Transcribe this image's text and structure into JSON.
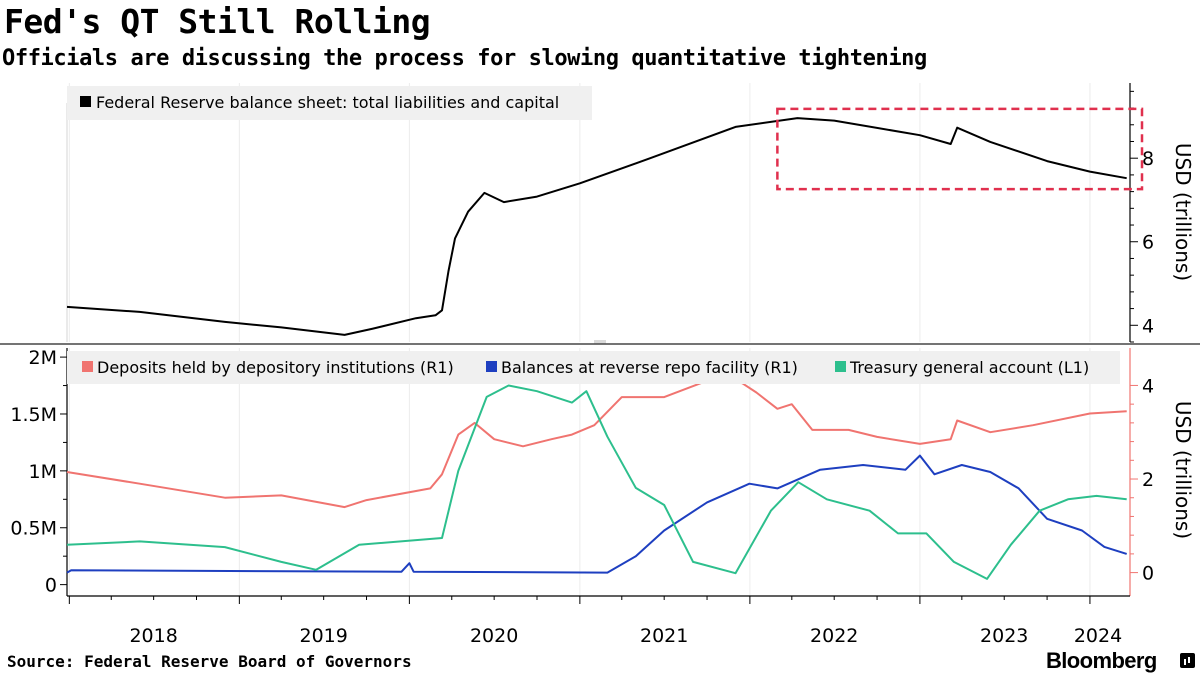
{
  "title": "Fed's QT Still Rolling",
  "subtitle": "Officials are discussing the process for slowing quantitative tightening",
  "source": "Source: Federal Reserve Board of Governors",
  "brand": "Bloomberg",
  "brand_icon": "bloomberg-terminal-icon",
  "chart_data": [
    {
      "type": "line",
      "x_type": "date",
      "xlim": [
        "2017-12-27",
        "2024-03-27"
      ],
      "ylabel": "USD (trillions)",
      "y_axis": "right",
      "ylim": [
        3.6,
        9.8
      ],
      "yticks": [
        4,
        6,
        8
      ],
      "legend_position": "top-left",
      "series": [
        {
          "name": "Federal Reserve balance sheet: total liabilities and capital",
          "color": "#000000",
          "points": [
            [
              "2017-12-27",
              4.44
            ],
            [
              "2018-06-01",
              4.32
            ],
            [
              "2018-12-01",
              4.08
            ],
            [
              "2019-04-01",
              3.95
            ],
            [
              "2019-08-15",
              3.77
            ],
            [
              "2019-10-15",
              3.92
            ],
            [
              "2020-01-15",
              4.17
            ],
            [
              "2020-02-26",
              4.24
            ],
            [
              "2020-03-11",
              4.36
            ],
            [
              "2020-03-25",
              5.3
            ],
            [
              "2020-04-08",
              6.08
            ],
            [
              "2020-05-06",
              6.72
            ],
            [
              "2020-06-10",
              7.17
            ],
            [
              "2020-07-22",
              6.95
            ],
            [
              "2020-10-01",
              7.08
            ],
            [
              "2021-01-01",
              7.4
            ],
            [
              "2021-06-01",
              8.0
            ],
            [
              "2021-12-01",
              8.75
            ],
            [
              "2022-04-13",
              8.96
            ],
            [
              "2022-07-01",
              8.9
            ],
            [
              "2023-01-01",
              8.55
            ],
            [
              "2023-03-08",
              8.34
            ],
            [
              "2023-03-22",
              8.73
            ],
            [
              "2023-06-01",
              8.39
            ],
            [
              "2023-10-01",
              7.93
            ],
            [
              "2024-01-01",
              7.68
            ],
            [
              "2024-03-20",
              7.52
            ]
          ]
        }
      ],
      "annotation": {
        "type": "dashed-box",
        "color": "#e0304e",
        "x": [
          "2022-03-01",
          "2024-03-27"
        ],
        "y": [
          7.26,
          9.18
        ]
      }
    },
    {
      "type": "line",
      "x_type": "date",
      "xlim": [
        "2017-12-27",
        "2024-03-27"
      ],
      "xticks": [
        "2018",
        "2019",
        "2020",
        "2021",
        "2022",
        "2023",
        "2024"
      ],
      "xlim_left": "2017-12-27",
      "left_axis": {
        "ylim": [
          -0.1,
          2.08
        ],
        "ticks": [
          0,
          0.5,
          1,
          1.5,
          2
        ],
        "tick_labels": [
          "0",
          "0.5M",
          "1M",
          "1.5M",
          "2M"
        ]
      },
      "right_axis": {
        "label": "USD (trillions)",
        "ylim": [
          -0.5,
          4.8
        ],
        "ticks": [
          0,
          2,
          4
        ],
        "tick_labels": [
          "0",
          "2",
          "4"
        ]
      },
      "legend_position": "top",
      "series": [
        {
          "name": "Deposits held by depository institutions (R1)",
          "axis": "right",
          "color": "#f07470",
          "points": [
            [
              "2017-12-27",
              2.15
            ],
            [
              "2018-06-01",
              1.9
            ],
            [
              "2018-12-01",
              1.6
            ],
            [
              "2019-04-01",
              1.65
            ],
            [
              "2019-08-15",
              1.4
            ],
            [
              "2019-10-01",
              1.55
            ],
            [
              "2020-02-15",
              1.8
            ],
            [
              "2020-03-11",
              2.1
            ],
            [
              "2020-04-15",
              2.95
            ],
            [
              "2020-05-20",
              3.2
            ],
            [
              "2020-07-01",
              2.85
            ],
            [
              "2020-09-01",
              2.7
            ],
            [
              "2020-11-01",
              2.85
            ],
            [
              "2020-12-15",
              2.95
            ],
            [
              "2021-02-01",
              3.15
            ],
            [
              "2021-04-01",
              3.75
            ],
            [
              "2021-07-01",
              3.75
            ],
            [
              "2021-10-01",
              4.1
            ],
            [
              "2021-12-15",
              4.05
            ],
            [
              "2022-01-15",
              3.85
            ],
            [
              "2022-03-01",
              3.5
            ],
            [
              "2022-04-01",
              3.6
            ],
            [
              "2022-05-15",
              3.05
            ],
            [
              "2022-08-01",
              3.05
            ],
            [
              "2022-10-01",
              2.9
            ],
            [
              "2023-01-01",
              2.75
            ],
            [
              "2023-03-08",
              2.85
            ],
            [
              "2023-03-22",
              3.25
            ],
            [
              "2023-06-01",
              3.0
            ],
            [
              "2023-09-01",
              3.15
            ],
            [
              "2024-01-01",
              3.4
            ],
            [
              "2024-03-20",
              3.45
            ]
          ]
        },
        {
          "name": "Balances at reverse repo facility (R1)",
          "axis": "right",
          "color": "#1e3fc0",
          "points": [
            [
              "2017-12-27",
              0.0
            ],
            [
              "2018-01-05",
              0.05
            ],
            [
              "2019-12-15",
              0.02
            ],
            [
              "2020-01-01",
              0.2
            ],
            [
              "2020-01-10",
              0.02
            ],
            [
              "2021-03-01",
              0.0
            ],
            [
              "2021-05-01",
              0.35
            ],
            [
              "2021-07-01",
              0.9
            ],
            [
              "2021-10-01",
              1.5
            ],
            [
              "2021-12-31",
              1.9
            ],
            [
              "2022-03-01",
              1.8
            ],
            [
              "2022-06-01",
              2.2
            ],
            [
              "2022-09-01",
              2.3
            ],
            [
              "2022-12-01",
              2.2
            ],
            [
              "2023-01-01",
              2.5
            ],
            [
              "2023-02-01",
              2.1
            ],
            [
              "2023-04-01",
              2.3
            ],
            [
              "2023-06-01",
              2.15
            ],
            [
              "2023-08-01",
              1.8
            ],
            [
              "2023-10-01",
              1.15
            ],
            [
              "2023-12-15",
              0.9
            ],
            [
              "2024-02-01",
              0.55
            ],
            [
              "2024-03-20",
              0.4
            ]
          ]
        },
        {
          "name": "Treasury general account (L1)",
          "axis": "left",
          "color": "#2dbf8d",
          "points": [
            [
              "2017-12-27",
              0.35
            ],
            [
              "2018-06-01",
              0.38
            ],
            [
              "2018-12-01",
              0.33
            ],
            [
              "2019-04-01",
              0.2
            ],
            [
              "2019-06-15",
              0.13
            ],
            [
              "2019-09-15",
              0.35
            ],
            [
              "2020-03-11",
              0.41
            ],
            [
              "2020-04-15",
              1.0
            ],
            [
              "2020-06-15",
              1.65
            ],
            [
              "2020-08-01",
              1.75
            ],
            [
              "2020-10-01",
              1.7
            ],
            [
              "2020-12-15",
              1.6
            ],
            [
              "2021-01-15",
              1.7
            ],
            [
              "2021-03-01",
              1.3
            ],
            [
              "2021-05-01",
              0.85
            ],
            [
              "2021-07-01",
              0.7
            ],
            [
              "2021-09-01",
              0.2
            ],
            [
              "2021-12-01",
              0.1
            ],
            [
              "2022-02-15",
              0.65
            ],
            [
              "2022-04-15",
              0.9
            ],
            [
              "2022-06-15",
              0.75
            ],
            [
              "2022-09-15",
              0.65
            ],
            [
              "2022-11-15",
              0.45
            ],
            [
              "2023-01-15",
              0.45
            ],
            [
              "2023-03-15",
              0.2
            ],
            [
              "2023-05-25",
              0.05
            ],
            [
              "2023-07-15",
              0.35
            ],
            [
              "2023-09-15",
              0.65
            ],
            [
              "2023-11-15",
              0.75
            ],
            [
              "2024-01-15",
              0.78
            ],
            [
              "2024-03-20",
              0.75
            ]
          ]
        }
      ]
    }
  ]
}
